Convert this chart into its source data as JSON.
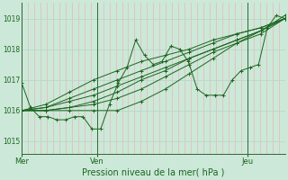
{
  "bg_color": "#cce8d8",
  "grid_v_color": "#e8b8b8",
  "grid_h_color": "#b8d8c8",
  "line_color": "#1a6620",
  "ylim": [
    1014.6,
    1019.5
  ],
  "yticks": [
    1015,
    1016,
    1017,
    1018,
    1019
  ],
  "xlabel": "Pression niveau de la mer( hPa )",
  "day_labels": [
    "Mer",
    "Ven",
    "Jeu"
  ],
  "day_positions": [
    0.0,
    0.286,
    0.857
  ],
  "day_sep_color": "#336633",
  "n_vgrid": 42,
  "series": [
    [
      1016.9,
      1016.1,
      1015.8,
      1015.8,
      1015.7,
      1015.7,
      1015.8,
      1015.8,
      1015.4,
      1015.4,
      1016.2,
      1016.9,
      1017.4,
      1018.3,
      1017.8,
      1017.5,
      1017.6,
      1018.1,
      1018.0,
      1017.6,
      1016.7,
      1016.5,
      1016.5,
      1016.5,
      1017.0,
      1017.3,
      1017.4,
      1017.5,
      1018.7,
      1019.1,
      1019.0
    ],
    [
      1016.0,
      1016.0,
      1016.0,
      1016.0,
      1016.0,
      1016.3,
      1016.7,
      1017.2,
      1017.7,
      1018.2,
      1018.6,
      1019.0
    ],
    [
      1016.0,
      1016.0,
      1016.1,
      1016.2,
      1016.4,
      1016.7,
      1017.1,
      1017.5,
      1017.9,
      1018.2,
      1018.5,
      1019.0
    ],
    [
      1016.0,
      1016.0,
      1016.1,
      1016.3,
      1016.6,
      1017.0,
      1017.3,
      1017.7,
      1018.0,
      1018.3,
      1018.6,
      1019.0
    ],
    [
      1016.0,
      1016.1,
      1016.3,
      1016.5,
      1016.8,
      1017.1,
      1017.4,
      1017.7,
      1018.0,
      1018.3,
      1018.6,
      1019.1
    ],
    [
      1016.0,
      1016.1,
      1016.4,
      1016.7,
      1017.0,
      1017.3,
      1017.6,
      1017.9,
      1018.2,
      1018.5,
      1018.7,
      1019.0
    ],
    [
      1016.0,
      1016.2,
      1016.6,
      1017.0,
      1017.3,
      1017.6,
      1017.8,
      1018.0,
      1018.3,
      1018.5,
      1018.7,
      1019.0
    ]
  ]
}
